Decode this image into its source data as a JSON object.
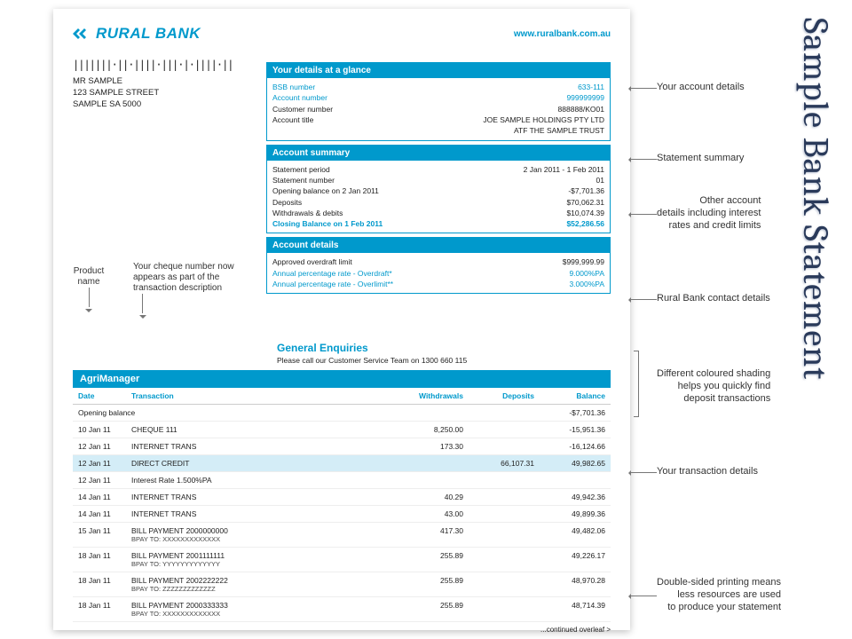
{
  "colors": {
    "brand": "#0099cc",
    "text": "#222222",
    "deposit_row": "#d4edf7",
    "callout": "#333333"
  },
  "side_title": "Sample Bank Statement",
  "header": {
    "bank_name": "RURAL BANK",
    "url": "www.ruralbank.com.au"
  },
  "addressee": {
    "barcode": "|||||||·||·||||·|||·|·||||·||",
    "name": "MR SAMPLE",
    "street": "123 SAMPLE STREET",
    "city": "SAMPLE SA 5000"
  },
  "details_panel": {
    "title": "Your details at a glance",
    "rows": [
      {
        "label": "BSB number",
        "value": "633-111",
        "blue": true
      },
      {
        "label": "Account number",
        "value": "999999999",
        "blue": true
      },
      {
        "label": "Customer number",
        "value": "888888/KO01"
      },
      {
        "label": "Account title",
        "value": "JOE SAMPLE HOLDINGS PTY LTD"
      },
      {
        "label": "",
        "value": "ATF THE SAMPLE TRUST"
      }
    ]
  },
  "summary_panel": {
    "title": "Account summary",
    "rows": [
      {
        "label": "Statement period",
        "value": "2 Jan 2011 - 1 Feb 2011"
      },
      {
        "label": "Statement number",
        "value": "01"
      },
      {
        "label": "Opening balance on 2 Jan 2011",
        "value": "-$7,701.36"
      },
      {
        "label": "Deposits",
        "value": "$70,062.31"
      },
      {
        "label": "Withdrawals & debits",
        "value": "$10,074.39"
      },
      {
        "label": "Closing Balance on 1 Feb 2011",
        "value": "$52,286.56",
        "blue": true,
        "bold": true
      }
    ]
  },
  "account_details_panel": {
    "title": "Account details",
    "rows": [
      {
        "label": "Approved overdraft limit",
        "value": "$999,999.99"
      },
      {
        "label": "Annual percentage rate - Overdraft*",
        "value": "9.000%PA",
        "blue": true
      },
      {
        "label": "Annual percentage rate - Overlimit**",
        "value": "3.000%PA",
        "blue": true
      }
    ]
  },
  "enquiries": {
    "title": "General Enquiries",
    "text": "Please call our Customer Service Team on 1300 660 115"
  },
  "product_name": "AgriManager",
  "tx_headers": {
    "date": "Date",
    "desc": "Transaction",
    "withdrawals": "Withdrawals",
    "deposits": "Deposits",
    "balance": "Balance"
  },
  "opening_row": {
    "label": "Opening balance",
    "balance": "-$7,701.36"
  },
  "transactions": [
    {
      "date": "10 Jan 11",
      "desc": "CHEQUE 111",
      "withdrawals": "8,250.00",
      "deposits": "",
      "balance": "-15,951.36"
    },
    {
      "date": "12 Jan 11",
      "desc": "INTERNET TRANS",
      "withdrawals": "173.30",
      "deposits": "",
      "balance": "-16,124.66"
    },
    {
      "date": "12 Jan 11",
      "desc": "DIRECT CREDIT",
      "withdrawals": "",
      "deposits": "66,107.31",
      "balance": "49,982.65",
      "deposit": true
    },
    {
      "date": "12 Jan 11",
      "desc": "Interest Rate    1.500%PA",
      "withdrawals": "",
      "deposits": "",
      "balance": ""
    },
    {
      "date": "14 Jan 11",
      "desc": "INTERNET TRANS",
      "withdrawals": "40.29",
      "deposits": "",
      "balance": "49,942.36"
    },
    {
      "date": "14 Jan 11",
      "desc": "INTERNET TRANS",
      "withdrawals": "43.00",
      "deposits": "",
      "balance": "49,899.36"
    },
    {
      "date": "15 Jan 11",
      "desc": "BILL PAYMENT   2000000000",
      "sub": "BPAY TO: XXXXXXXXXXXXX",
      "withdrawals": "417.30",
      "deposits": "",
      "balance": "49,482.06"
    },
    {
      "date": "18 Jan 11",
      "desc": "BILL PAYMENT   2001111111",
      "sub": "BPAY TO: YYYYYYYYYYYYY",
      "withdrawals": "255.89",
      "deposits": "",
      "balance": "49,226.17"
    },
    {
      "date": "18 Jan 11",
      "desc": "BILL PAYMENT   2002222222",
      "sub": "BPAY TO: ZZZZZZZZZZZZZ",
      "withdrawals": "255.89",
      "deposits": "",
      "balance": "48,970.28"
    },
    {
      "date": "18 Jan 11",
      "desc": "BILL PAYMENT   2000333333",
      "sub": "BPAY TO: XXXXXXXXXXXXX",
      "withdrawals": "255.89",
      "deposits": "",
      "balance": "48,714.39"
    }
  ],
  "continued": "...continued overleaf >",
  "callouts": {
    "c1": "Your account details",
    "c2": "Statement summary",
    "c3": "Other account\ndetails including interest\nrates and credit limits",
    "c4": "Rural Bank contact details",
    "c5": "Different coloured shading\nhelps you quickly find\ndeposit transactions",
    "c6": "Your transaction details",
    "c7": "Double-sided printing means\nless resources are used\nto produce your statement",
    "left1": "Product\nname",
    "left2": "Your cheque number now\nappears as part of the\ntransaction description"
  }
}
